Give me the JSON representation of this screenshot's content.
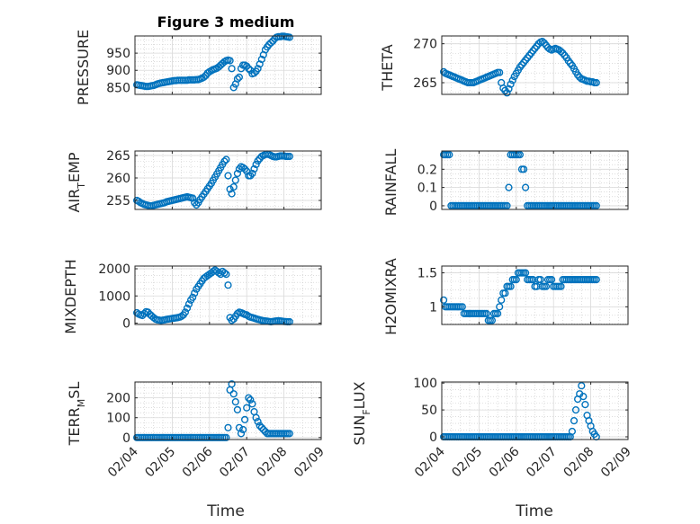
{
  "figure_title": "Figure 3 medium",
  "shared_xlabel": "Time",
  "x_tick_labels": [
    "02/04",
    "02/05",
    "02/06",
    "02/07",
    "02/08",
    "02/09"
  ],
  "colors": {
    "marker": "#0072BD",
    "axis": "#262626",
    "grid": "#c8c8c8",
    "background": "#ffffff"
  },
  "chart_data": [
    {
      "type": "scatter",
      "name": "pressure",
      "title": "Figure 3 medium",
      "ylabel": "PRESSURE",
      "ylim": [
        830,
        1000
      ],
      "yticks": [
        850,
        900,
        950
      ],
      "x": [
        4.05,
        4.1,
        4.15,
        4.2,
        4.25,
        4.3,
        4.35,
        4.4,
        4.45,
        4.5,
        4.55,
        4.6,
        4.65,
        4.7,
        4.75,
        4.8,
        4.85,
        4.9,
        4.95,
        5.0,
        5.05,
        5.1,
        5.15,
        5.2,
        5.25,
        5.3,
        5.35,
        5.4,
        5.45,
        5.5,
        5.55,
        5.6,
        5.65,
        5.7,
        5.75,
        5.8,
        5.85,
        5.9,
        5.95,
        6.0,
        6.05,
        6.1,
        6.15,
        6.2,
        6.25,
        6.3,
        6.35,
        6.4,
        6.45,
        6.5,
        6.55,
        6.6,
        6.65,
        6.7,
        6.75,
        6.8,
        6.85,
        6.9,
        6.95,
        7.0,
        7.05,
        7.1,
        7.15,
        7.2,
        7.25,
        7.3,
        7.35,
        7.4,
        7.45,
        7.5,
        7.55,
        7.6,
        7.65,
        7.7,
        7.75,
        7.8,
        7.85,
        7.9,
        7.95,
        8.0,
        8.05,
        8.1,
        8.15
      ],
      "y": [
        858,
        857,
        856,
        855,
        854,
        853,
        853,
        854,
        855,
        856,
        858,
        860,
        862,
        863,
        864,
        865,
        866,
        867,
        868,
        869,
        870,
        870,
        871,
        871,
        871,
        871,
        871,
        871,
        872,
        872,
        872,
        872,
        873,
        873,
        875,
        877,
        880,
        885,
        892,
        896,
        899,
        902,
        904,
        906,
        910,
        915,
        920,
        925,
        928,
        930,
        928,
        905,
        850,
        860,
        875,
        880,
        905,
        915,
        915,
        912,
        905,
        900,
        890,
        892,
        897,
        905,
        918,
        932,
        945,
        960,
        968,
        975,
        980,
        985,
        992,
        996,
        998,
        998,
        999,
        999,
        998,
        997,
        996
      ]
    },
    {
      "type": "scatter",
      "name": "theta",
      "ylabel": "THETA",
      "ylim": [
        263.5,
        271
      ],
      "yticks": [
        265,
        270
      ],
      "x": [
        4.05,
        4.1,
        4.15,
        4.2,
        4.25,
        4.3,
        4.35,
        4.4,
        4.45,
        4.5,
        4.55,
        4.6,
        4.65,
        4.7,
        4.75,
        4.8,
        4.85,
        4.9,
        4.95,
        5.0,
        5.05,
        5.1,
        5.15,
        5.2,
        5.25,
        5.3,
        5.35,
        5.4,
        5.45,
        5.5,
        5.55,
        5.6,
        5.65,
        5.7,
        5.75,
        5.8,
        5.85,
        5.9,
        5.95,
        6.0,
        6.05,
        6.1,
        6.15,
        6.2,
        6.25,
        6.3,
        6.35,
        6.4,
        6.45,
        6.5,
        6.55,
        6.6,
        6.65,
        6.7,
        6.75,
        6.8,
        6.85,
        6.9,
        6.95,
        7.0,
        7.05,
        7.1,
        7.15,
        7.2,
        7.25,
        7.3,
        7.35,
        7.4,
        7.45,
        7.5,
        7.55,
        7.6,
        7.65,
        7.7,
        7.75,
        7.8,
        7.85,
        7.9,
        7.95,
        8.0,
        8.05,
        8.1,
        8.15
      ],
      "y": [
        266.4,
        266.2,
        266.1,
        266.0,
        265.9,
        265.8,
        265.7,
        265.6,
        265.5,
        265.4,
        265.3,
        265.2,
        265.1,
        265.0,
        265.0,
        265.0,
        265.0,
        265.1,
        265.2,
        265.3,
        265.4,
        265.5,
        265.6,
        265.7,
        265.8,
        265.9,
        266.0,
        266.1,
        266.2,
        266.3,
        266.3,
        265.0,
        264.3,
        264.0,
        263.7,
        264.2,
        264.8,
        265.3,
        265.8,
        266.2,
        266.6,
        267.0,
        267.3,
        267.6,
        267.9,
        268.2,
        268.5,
        268.8,
        269.1,
        269.4,
        269.7,
        270.0,
        270.2,
        270.3,
        270.1,
        269.8,
        269.5,
        269.3,
        269.2,
        269.3,
        269.4,
        269.3,
        269.2,
        269.0,
        268.8,
        268.5,
        268.2,
        267.8,
        267.5,
        267.2,
        266.8,
        266.4,
        266.0,
        265.7,
        265.5,
        265.4,
        265.3,
        265.2,
        265.2,
        265.1,
        265.1,
        265.0,
        265.0
      ]
    },
    {
      "type": "scatter",
      "name": "air_temp",
      "ylabel": "AIR_TEMP",
      "ylim": [
        253,
        266
      ],
      "yticks": [
        255,
        260,
        265
      ],
      "x": [
        4.05,
        4.1,
        4.15,
        4.2,
        4.25,
        4.3,
        4.35,
        4.4,
        4.45,
        4.5,
        4.55,
        4.6,
        4.65,
        4.7,
        4.75,
        4.8,
        4.85,
        4.9,
        4.95,
        5.0,
        5.05,
        5.1,
        5.15,
        5.2,
        5.25,
        5.3,
        5.35,
        5.4,
        5.45,
        5.5,
        5.55,
        5.6,
        5.65,
        5.7,
        5.75,
        5.8,
        5.85,
        5.9,
        5.95,
        6.0,
        6.05,
        6.1,
        6.15,
        6.2,
        6.25,
        6.3,
        6.35,
        6.4,
        6.45,
        6.5,
        6.55,
        6.6,
        6.65,
        6.7,
        6.75,
        6.8,
        6.85,
        6.9,
        6.95,
        7.0,
        7.05,
        7.1,
        7.15,
        7.2,
        7.25,
        7.3,
        7.35,
        7.4,
        7.45,
        7.5,
        7.55,
        7.6,
        7.65,
        7.7,
        7.75,
        7.8,
        7.85,
        7.9,
        7.95,
        8.0,
        8.05,
        8.1,
        8.15
      ],
      "y": [
        255.0,
        254.8,
        254.5,
        254.3,
        254.1,
        254.0,
        253.9,
        253.8,
        253.8,
        253.9,
        254.0,
        254.1,
        254.2,
        254.3,
        254.4,
        254.5,
        254.7,
        254.8,
        254.9,
        255.0,
        255.1,
        255.2,
        255.3,
        255.4,
        255.5,
        255.6,
        255.7,
        255.8,
        255.7,
        255.6,
        255.5,
        254.5,
        254.0,
        254.5,
        255.2,
        255.8,
        256.4,
        257.0,
        257.6,
        258.2,
        258.8,
        259.5,
        260.2,
        260.9,
        261.6,
        262.3,
        263.0,
        263.7,
        264.1,
        260.5,
        257.5,
        256.5,
        258.0,
        259.5,
        261.0,
        262.0,
        262.5,
        262.3,
        262.0,
        261.5,
        260.5,
        260.5,
        261.0,
        262.0,
        263.0,
        263.8,
        264.3,
        264.8,
        265.0,
        265.2,
        265.3,
        265.2,
        265.0,
        264.8,
        264.7,
        264.7,
        264.8,
        264.9,
        264.9,
        264.9,
        264.8,
        264.8,
        264.8
      ]
    },
    {
      "type": "scatter",
      "name": "rainfall",
      "ylabel": "RAINFALL",
      "ylim": [
        -0.02,
        0.3
      ],
      "yticks": [
        0,
        0.1,
        0.2
      ],
      "x": [
        4.05,
        4.1,
        4.15,
        4.2,
        4.25,
        4.3,
        4.35,
        4.4,
        4.45,
        4.5,
        4.55,
        4.6,
        4.65,
        4.7,
        4.75,
        4.8,
        4.85,
        4.9,
        4.95,
        5.0,
        5.05,
        5.1,
        5.15,
        5.2,
        5.25,
        5.3,
        5.35,
        5.4,
        5.45,
        5.5,
        5.55,
        5.6,
        5.65,
        5.7,
        5.75,
        5.8,
        5.85,
        5.9,
        5.95,
        6.0,
        6.05,
        6.1,
        6.15,
        6.2,
        6.25,
        6.3,
        6.35,
        6.4,
        6.45,
        6.5,
        6.55,
        6.6,
        6.65,
        6.7,
        6.75,
        6.8,
        6.85,
        6.9,
        6.95,
        7.0,
        7.05,
        7.1,
        7.15,
        7.2,
        7.25,
        7.3,
        7.35,
        7.4,
        7.45,
        7.5,
        7.55,
        7.6,
        7.65,
        7.7,
        7.75,
        7.8,
        7.85,
        7.9,
        7.95,
        8.0,
        8.05,
        8.1,
        8.15
      ],
      "y": [
        0.28,
        0.28,
        0.28,
        0.28,
        0,
        0,
        0,
        0,
        0,
        0,
        0,
        0,
        0,
        0,
        0,
        0,
        0,
        0,
        0,
        0,
        0,
        0,
        0,
        0,
        0,
        0,
        0,
        0,
        0,
        0,
        0,
        0,
        0,
        0,
        0,
        0.1,
        0.28,
        0.28,
        0.28,
        0.28,
        0.28,
        0.28,
        0.2,
        0.2,
        0.1,
        0,
        0,
        0,
        0,
        0,
        0,
        0,
        0,
        0,
        0,
        0,
        0,
        0,
        0,
        0,
        0,
        0,
        0,
        0,
        0,
        0,
        0,
        0,
        0,
        0,
        0,
        0,
        0,
        0,
        0,
        0,
        0,
        0,
        0,
        0,
        0,
        0,
        0
      ]
    },
    {
      "type": "scatter",
      "name": "mixdepth",
      "ylabel": "MIXDEPTH",
      "ylim": [
        -50,
        2100
      ],
      "yticks": [
        0,
        1000,
        2000
      ],
      "x": [
        4.05,
        4.1,
        4.15,
        4.2,
        4.25,
        4.3,
        4.35,
        4.4,
        4.45,
        4.5,
        4.55,
        4.6,
        4.65,
        4.7,
        4.75,
        4.8,
        4.85,
        4.9,
        4.95,
        5.0,
        5.05,
        5.1,
        5.15,
        5.2,
        5.25,
        5.3,
        5.35,
        5.4,
        5.45,
        5.5,
        5.55,
        5.6,
        5.65,
        5.7,
        5.75,
        5.8,
        5.85,
        5.9,
        5.95,
        6.0,
        6.05,
        6.1,
        6.15,
        6.2,
        6.25,
        6.3,
        6.35,
        6.4,
        6.45,
        6.5,
        6.55,
        6.6,
        6.65,
        6.7,
        6.75,
        6.8,
        6.85,
        6.9,
        6.95,
        7.0,
        7.05,
        7.1,
        7.15,
        7.2,
        7.25,
        7.3,
        7.35,
        7.4,
        7.45,
        7.5,
        7.55,
        7.6,
        7.65,
        7.7,
        7.75,
        7.8,
        7.85,
        7.9,
        7.95,
        8.0,
        8.05,
        8.1,
        8.15
      ],
      "y": [
        380,
        330,
        300,
        280,
        350,
        420,
        400,
        320,
        260,
        200,
        150,
        120,
        110,
        100,
        110,
        120,
        140,
        150,
        160,
        170,
        180,
        190,
        200,
        220,
        250,
        300,
        400,
        550,
        700,
        850,
        950,
        1100,
        1250,
        1350,
        1450,
        1550,
        1650,
        1700,
        1750,
        1800,
        1850,
        1900,
        1950,
        1900,
        1850,
        1800,
        1900,
        1850,
        1800,
        1400,
        200,
        100,
        150,
        250,
        350,
        400,
        380,
        350,
        320,
        300,
        250,
        220,
        200,
        180,
        160,
        140,
        120,
        100,
        90,
        80,
        70,
        60,
        50,
        60,
        70,
        80,
        90,
        80,
        70,
        60,
        55,
        50,
        50
      ]
    },
    {
      "type": "scatter",
      "name": "h2omixra",
      "ylabel": "H2OMIXRA",
      "ylim": [
        0.74,
        1.6
      ],
      "yticks": [
        1,
        1.5
      ],
      "x": [
        4.05,
        4.1,
        4.15,
        4.2,
        4.25,
        4.3,
        4.35,
        4.4,
        4.45,
        4.5,
        4.55,
        4.6,
        4.65,
        4.7,
        4.75,
        4.8,
        4.85,
        4.9,
        4.95,
        5.0,
        5.05,
        5.1,
        5.15,
        5.2,
        5.25,
        5.3,
        5.35,
        5.4,
        5.45,
        5.5,
        5.55,
        5.6,
        5.65,
        5.7,
        5.75,
        5.8,
        5.85,
        5.9,
        5.95,
        6.0,
        6.05,
        6.1,
        6.15,
        6.2,
        6.25,
        6.3,
        6.35,
        6.4,
        6.45,
        6.5,
        6.55,
        6.6,
        6.65,
        6.7,
        6.75,
        6.8,
        6.85,
        6.9,
        6.95,
        7.0,
        7.05,
        7.1,
        7.15,
        7.2,
        7.25,
        7.3,
        7.35,
        7.4,
        7.45,
        7.5,
        7.55,
        7.6,
        7.65,
        7.7,
        7.75,
        7.8,
        7.85,
        7.9,
        7.95,
        8.0,
        8.05,
        8.1,
        8.15
      ],
      "y": [
        1.1,
        1.0,
        1.0,
        1.0,
        1.0,
        1.0,
        1.0,
        1.0,
        1.0,
        1.0,
        1.0,
        0.9,
        0.9,
        0.9,
        0.9,
        0.9,
        0.9,
        0.9,
        0.9,
        0.9,
        0.9,
        0.9,
        0.9,
        0.9,
        0.8,
        0.8,
        0.8,
        0.9,
        0.9,
        0.9,
        1.0,
        1.1,
        1.2,
        1.2,
        1.3,
        1.3,
        1.3,
        1.4,
        1.4,
        1.4,
        1.5,
        1.5,
        1.5,
        1.5,
        1.5,
        1.4,
        1.4,
        1.4,
        1.4,
        1.3,
        1.3,
        1.4,
        1.4,
        1.3,
        1.3,
        1.3,
        1.4,
        1.4,
        1.4,
        1.3,
        1.3,
        1.3,
        1.3,
        1.3,
        1.4,
        1.4,
        1.4,
        1.4,
        1.4,
        1.4,
        1.4,
        1.4,
        1.4,
        1.4,
        1.4,
        1.4,
        1.4,
        1.4,
        1.4,
        1.4,
        1.4,
        1.4,
        1.4
      ]
    },
    {
      "type": "scatter",
      "name": "terr_msl",
      "ylabel": "TERR_MSL",
      "ylim": [
        -10,
        280
      ],
      "yticks": [
        0,
        100,
        200
      ],
      "x": [
        4.05,
        4.1,
        4.15,
        4.2,
        4.25,
        4.3,
        4.35,
        4.4,
        4.45,
        4.5,
        4.55,
        4.6,
        4.65,
        4.7,
        4.75,
        4.8,
        4.85,
        4.9,
        4.95,
        5.0,
        5.05,
        5.1,
        5.15,
        5.2,
        5.25,
        5.3,
        5.35,
        5.4,
        5.45,
        5.5,
        5.55,
        5.6,
        5.65,
        5.7,
        5.75,
        5.8,
        5.85,
        5.9,
        5.95,
        6.0,
        6.05,
        6.1,
        6.15,
        6.2,
        6.25,
        6.3,
        6.35,
        6.4,
        6.45,
        6.5,
        6.55,
        6.6,
        6.65,
        6.7,
        6.75,
        6.8,
        6.85,
        6.9,
        6.95,
        7.0,
        7.05,
        7.1,
        7.15,
        7.2,
        7.25,
        7.3,
        7.35,
        7.4,
        7.45,
        7.5,
        7.55,
        7.6,
        7.65,
        7.7,
        7.75,
        7.8,
        7.85,
        7.9,
        7.95,
        8.0,
        8.05,
        8.1,
        8.15
      ],
      "y": [
        0,
        0,
        0,
        0,
        0,
        0,
        0,
        0,
        0,
        0,
        0,
        0,
        0,
        0,
        0,
        0,
        0,
        0,
        0,
        0,
        0,
        0,
        0,
        0,
        0,
        0,
        0,
        0,
        0,
        0,
        0,
        0,
        0,
        0,
        0,
        0,
        0,
        0,
        0,
        0,
        0,
        0,
        0,
        0,
        0,
        0,
        0,
        0,
        0,
        50,
        240,
        270,
        220,
        180,
        140,
        50,
        20,
        40,
        90,
        150,
        200,
        190,
        170,
        130,
        100,
        80,
        60,
        50,
        40,
        30,
        20,
        20,
        20,
        20,
        20,
        20,
        20,
        20,
        20,
        20,
        20,
        20,
        20
      ]
    },
    {
      "type": "scatter",
      "name": "sun_flux",
      "ylabel": "SUN_FLUX",
      "ylim": [
        -5,
        102
      ],
      "yticks": [
        0,
        50,
        100
      ],
      "x": [
        4.05,
        4.1,
        4.15,
        4.2,
        4.25,
        4.3,
        4.35,
        4.4,
        4.45,
        4.5,
        4.55,
        4.6,
        4.65,
        4.7,
        4.75,
        4.8,
        4.85,
        4.9,
        4.95,
        5.0,
        5.05,
        5.1,
        5.15,
        5.2,
        5.25,
        5.3,
        5.35,
        5.4,
        5.45,
        5.5,
        5.55,
        5.6,
        5.65,
        5.7,
        5.75,
        5.8,
        5.85,
        5.9,
        5.95,
        6.0,
        6.05,
        6.1,
        6.15,
        6.2,
        6.25,
        6.3,
        6.35,
        6.4,
        6.45,
        6.5,
        6.55,
        6.6,
        6.65,
        6.7,
        6.75,
        6.8,
        6.85,
        6.9,
        6.95,
        7.0,
        7.05,
        7.1,
        7.15,
        7.2,
        7.25,
        7.3,
        7.35,
        7.4,
        7.45,
        7.5,
        7.55,
        7.6,
        7.65,
        7.7,
        7.75,
        7.8,
        7.85,
        7.9,
        7.95,
        8.0,
        8.05,
        8.1,
        8.15
      ],
      "y": [
        0,
        0,
        0,
        0,
        0,
        0,
        0,
        0,
        0,
        0,
        0,
        0,
        0,
        0,
        0,
        0,
        0,
        0,
        0,
        0,
        0,
        0,
        0,
        0,
        0,
        0,
        0,
        0,
        0,
        0,
        0,
        0,
        0,
        0,
        0,
        0,
        0,
        0,
        0,
        0,
        0,
        0,
        0,
        0,
        0,
        0,
        0,
        0,
        0,
        0,
        0,
        0,
        0,
        0,
        0,
        0,
        0,
        0,
        0,
        0,
        0,
        0,
        0,
        0,
        0,
        0,
        0,
        0,
        0,
        10,
        30,
        50,
        70,
        80,
        95,
        75,
        60,
        40,
        30,
        20,
        10,
        5,
        0
      ]
    }
  ]
}
